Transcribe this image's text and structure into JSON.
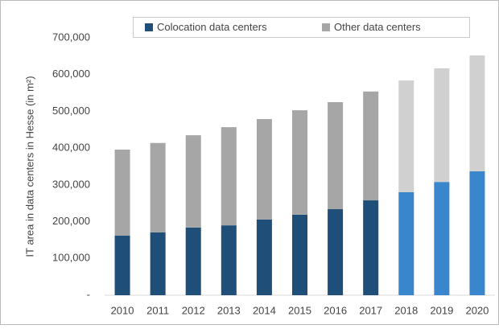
{
  "chart_data": {
    "type": "stacked_bar",
    "y_label": "IT area in data centers in Hesse (in m²)",
    "categories": [
      "2010",
      "2011",
      "2012",
      "2013",
      "2014",
      "2015",
      "2016",
      "2017",
      "2018",
      "2019",
      "2020"
    ],
    "series": [
      {
        "name": "Colocation data centers",
        "color": "#1f4e79",
        "colors": [
          "#1f4e79",
          "#1f4e79",
          "#1f4e79",
          "#1f4e79",
          "#1f4e79",
          "#1f4e79",
          "#1f4e79",
          "#1f4e79",
          "#3a86cc",
          "#3a86cc",
          "#3a86cc"
        ],
        "values": [
          162000,
          171000,
          184000,
          190000,
          206000,
          219000,
          234000,
          258000,
          280000,
          308000,
          337000
        ]
      },
      {
        "name": "Other data centers",
        "color": "#a6a6a6",
        "colors": [
          "#a6a6a6",
          "#a6a6a6",
          "#a6a6a6",
          "#a6a6a6",
          "#a6a6a6",
          "#a6a6a6",
          "#a6a6a6",
          "#a6a6a6",
          "#d0d0d0",
          "#d0d0d0",
          "#d0d0d0"
        ],
        "values": [
          234000,
          243000,
          251000,
          267000,
          273000,
          284000,
          291000,
          296000,
          304000,
          309000,
          315000
        ]
      }
    ],
    "ylim": [
      0,
      700000
    ],
    "yticks": [
      {
        "value": 0,
        "label": "-"
      },
      {
        "value": 100000,
        "label": "100,000"
      },
      {
        "value": 200000,
        "label": "200,000"
      },
      {
        "value": 300000,
        "label": "300,000"
      },
      {
        "value": 400000,
        "label": "400,000"
      },
      {
        "value": 500000,
        "label": "500,000"
      },
      {
        "value": 600000,
        "label": "600,000"
      },
      {
        "value": 700000,
        "label": "700,000"
      }
    ],
    "legend": "top"
  }
}
